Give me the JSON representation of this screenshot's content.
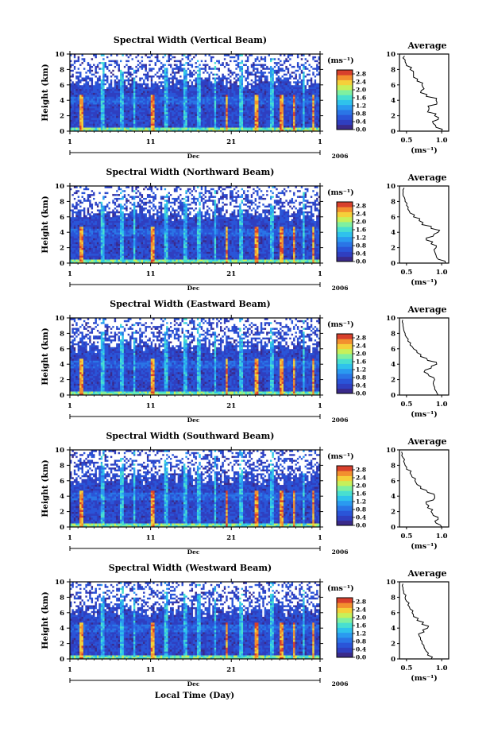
{
  "figure": {
    "xlabel": "Local Time (Day)",
    "colors": {
      "background": "#ffffff",
      "ink": "#000000",
      "missing": "#ffffff",
      "colormap": [
        "#3a2a8a",
        "#2f3fc0",
        "#2a55d8",
        "#2a75e6",
        "#2a9af0",
        "#2fc2ec",
        "#48dfd0",
        "#7ff0a0",
        "#c7f05a",
        "#f5d03a",
        "#f3902f",
        "#d8402c"
      ]
    }
  },
  "chart_data": [
    {
      "type": "heatmap",
      "title": "Spectral Width (Vertical Beam)",
      "ylabel": "Height (km)",
      "ylim": [
        0,
        10
      ],
      "yticks": [
        "0",
        "2",
        "4",
        "6",
        "8",
        "10"
      ],
      "xticks": [
        "1",
        "11",
        "21",
        "1"
      ],
      "xrange_days": [
        1,
        32
      ],
      "month_label": "Dec",
      "year_label": "2006",
      "colorbar": {
        "unit": "(ms⁻¹)",
        "ticks": [
          "0.0",
          "0.4",
          "0.8",
          "1.2",
          "1.6",
          "2.0",
          "2.4",
          "2.8"
        ],
        "range": [
          0,
          3.0
        ]
      },
      "profile": {
        "title": "Average",
        "xlabel": "(ms⁻¹)",
        "xticks": [
          "0.5",
          "1.0"
        ],
        "xlim": [
          0.4,
          1.1
        ],
        "yticks": [
          "0",
          "2",
          "4",
          "6",
          "8",
          "10"
        ],
        "ylim": [
          0,
          10
        ],
        "height_km": [
          0,
          0.5,
          1,
          1.5,
          2,
          2.5,
          3,
          3.5,
          4,
          4.5,
          5,
          5.5,
          6,
          6.5,
          7,
          7.5,
          8,
          8.5,
          9,
          9.5
        ],
        "width_ms": [
          1.0,
          0.92,
          0.88,
          0.95,
          0.9,
          0.8,
          0.82,
          0.93,
          0.92,
          0.78,
          0.7,
          0.75,
          0.72,
          0.65,
          0.6,
          0.6,
          0.55,
          0.5,
          0.48,
          0.45
        ]
      }
    },
    {
      "type": "heatmap",
      "title": "Spectral Width (Northward Beam)",
      "ylabel": "Height (km)",
      "ylim": [
        0,
        10
      ],
      "yticks": [
        "0",
        "2",
        "4",
        "6",
        "8",
        "10"
      ],
      "xticks": [
        "1",
        "11",
        "21",
        "1"
      ],
      "xrange_days": [
        1,
        32
      ],
      "month_label": "Dec",
      "year_label": "2006",
      "colorbar": {
        "unit": "(ms⁻¹)",
        "ticks": [
          "0.0",
          "0.4",
          "0.8",
          "1.2",
          "1.6",
          "2.0",
          "2.4",
          "2.8"
        ],
        "range": [
          0,
          3.0
        ]
      },
      "profile": {
        "title": "Average",
        "xlabel": "(ms⁻¹)",
        "xticks": [
          "0.5",
          "1.0"
        ],
        "xlim": [
          0.4,
          1.1
        ],
        "yticks": [
          "0",
          "2",
          "4",
          "6",
          "8",
          "10"
        ],
        "ylim": [
          0,
          10
        ],
        "height_km": [
          0,
          0.5,
          1,
          1.5,
          2,
          2.5,
          3,
          3.5,
          4,
          4.5,
          5,
          5.5,
          6,
          6.5,
          7,
          7.5,
          8,
          8.5,
          9,
          9.5
        ],
        "width_ms": [
          1.05,
          0.95,
          0.92,
          0.9,
          0.92,
          0.85,
          0.78,
          0.88,
          0.95,
          0.85,
          0.72,
          0.68,
          0.6,
          0.55,
          0.52,
          0.5,
          0.48,
          0.47,
          0.45,
          0.45
        ]
      }
    },
    {
      "type": "heatmap",
      "title": "Spectral Width (Eastward Beam)",
      "ylabel": "Height (km)",
      "ylim": [
        0,
        10
      ],
      "yticks": [
        "0",
        "2",
        "4",
        "6",
        "8",
        "10"
      ],
      "xticks": [
        "1",
        "11",
        "21",
        "1"
      ],
      "xrange_days": [
        1,
        32
      ],
      "month_label": "Dec",
      "year_label": "2006",
      "colorbar": {
        "unit": "(ms⁻¹)",
        "ticks": [
          "0.0",
          "0.4",
          "0.8",
          "1.2",
          "1.6",
          "2.0",
          "2.4",
          "2.8"
        ],
        "range": [
          0,
          3.0
        ]
      },
      "profile": {
        "title": "Average",
        "xlabel": "(ms⁻¹)",
        "xticks": [
          "0.5",
          "1.0"
        ],
        "xlim": [
          0.4,
          1.1
        ],
        "yticks": [
          "0",
          "2",
          "4",
          "6",
          "8",
          "10"
        ],
        "ylim": [
          0,
          10
        ],
        "height_km": [
          0,
          0.5,
          1,
          1.5,
          2,
          2.5,
          3,
          3.5,
          4,
          4.5,
          5,
          5.5,
          6,
          6.5,
          7,
          7.5,
          8,
          8.5,
          9,
          9.5
        ],
        "width_ms": [
          0.95,
          0.92,
          0.9,
          0.88,
          0.9,
          0.82,
          0.75,
          0.85,
          0.93,
          0.8,
          0.7,
          0.65,
          0.6,
          0.55,
          0.52,
          0.5,
          0.48,
          0.46,
          0.45,
          0.44
        ]
      }
    },
    {
      "type": "heatmap",
      "title": "Spectral Width (Southward Beam)",
      "ylabel": "Height (km)",
      "ylim": [
        0,
        10
      ],
      "yticks": [
        "0",
        "2",
        "4",
        "6",
        "8",
        "10"
      ],
      "xticks": [
        "1",
        "11",
        "21",
        "1"
      ],
      "xrange_days": [
        1,
        32
      ],
      "month_label": "Dec",
      "year_label": "2006",
      "colorbar": {
        "unit": "(ms⁻¹)",
        "ticks": [
          "0.0",
          "0.4",
          "0.8",
          "1.2",
          "1.6",
          "2.0",
          "2.4",
          "2.8"
        ],
        "range": [
          0,
          3.0
        ]
      },
      "profile": {
        "title": "Average",
        "xlabel": "(ms⁻¹)",
        "xticks": [
          "0.5",
          "1.0"
        ],
        "xlim": [
          0.4,
          1.1
        ],
        "yticks": [
          "0",
          "2",
          "4",
          "6",
          "8",
          "10"
        ],
        "ylim": [
          0,
          10
        ],
        "height_km": [
          0,
          0.5,
          1,
          1.5,
          2,
          2.5,
          3,
          3.5,
          4,
          4.5,
          5,
          5.5,
          6,
          6.5,
          7,
          7.5,
          8,
          8.5,
          9,
          9.5
        ],
        "width_ms": [
          1.0,
          0.92,
          0.95,
          0.88,
          0.85,
          0.8,
          0.78,
          0.88,
          0.9,
          0.8,
          0.7,
          0.65,
          0.62,
          0.58,
          0.55,
          0.5,
          0.48,
          0.46,
          0.45,
          0.44
        ]
      }
    },
    {
      "type": "heatmap",
      "title": "Spectral Width (Westward Beam)",
      "ylabel": "Height (km)",
      "ylim": [
        0,
        10
      ],
      "yticks": [
        "0",
        "2",
        "4",
        "6",
        "8",
        "10"
      ],
      "xticks": [
        "1",
        "11",
        "21",
        "1"
      ],
      "xrange_days": [
        1,
        32
      ],
      "month_label": "Dec",
      "year_label": "2006",
      "colorbar": {
        "unit": "(ms⁻¹)",
        "ticks": [
          "0.0",
          "0.4",
          "0.8",
          "1.2",
          "1.6",
          "2.0",
          "2.4",
          "2.8"
        ],
        "range": [
          0,
          3.0
        ]
      },
      "profile": {
        "title": "Average",
        "xlabel": "(ms⁻¹)",
        "xticks": [
          "0.5",
          "1.0"
        ],
        "xlim": [
          0.4,
          1.1
        ],
        "yticks": [
          "0",
          "2",
          "4",
          "6",
          "8",
          "10"
        ],
        "ylim": [
          0,
          10
        ],
        "height_km": [
          0,
          0.5,
          1,
          1.5,
          2,
          2.5,
          3,
          3.5,
          4,
          4.5,
          5,
          5.5,
          6,
          6.5,
          7,
          7.5,
          8,
          8.5,
          9,
          9.5
        ],
        "width_ms": [
          0.85,
          0.8,
          0.78,
          0.75,
          0.72,
          0.7,
          0.68,
          0.75,
          0.8,
          0.72,
          0.65,
          0.6,
          0.58,
          0.55,
          0.52,
          0.5,
          0.48,
          0.46,
          0.45,
          0.44
        ]
      }
    }
  ]
}
